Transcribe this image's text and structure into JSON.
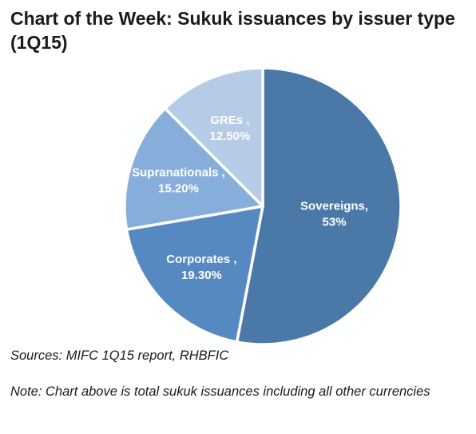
{
  "title": "Chart of the Week: Sukuk issuances by issuer type (1Q15)",
  "chart_data": {
    "type": "pie",
    "title": "Chart of the Week: Sukuk issuances by issuer type (1Q15)",
    "slices": [
      {
        "name": "Sovereigns,",
        "value": 53,
        "label": "53%",
        "color": "#4a79a8"
      },
      {
        "name": "Corporates ,",
        "value": 19.3,
        "label": "19.30%",
        "color": "#5689c2"
      },
      {
        "name": "Supranationals ,",
        "value": 15.2,
        "label": "15.20%",
        "color": "#87aedb"
      },
      {
        "name": "GREs ,",
        "value": 12.5,
        "label": "12.50%",
        "color": "#b6cbe6"
      }
    ],
    "start": "12 o'clock",
    "direction": "clockwise",
    "legend": "none (labels inside slices)"
  },
  "footer": {
    "source": "Sources: MIFC 1Q15 report, RHBFIC",
    "note": "Note: Chart above is total sukuk issuances including all other currencies"
  }
}
